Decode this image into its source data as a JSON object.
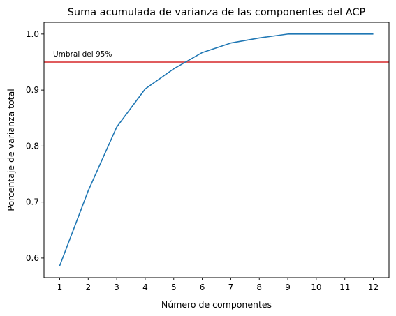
{
  "chart_data": {
    "type": "line",
    "title": "Suma acumulada de varianza de las componentes del ACP",
    "xlabel": "Número de componentes",
    "ylabel": "Porcentaje de varianza total",
    "x": [
      1,
      2,
      3,
      4,
      5,
      6,
      7,
      8,
      9,
      10,
      11,
      12
    ],
    "x_ticks": [
      "1",
      "2",
      "3",
      "4",
      "5",
      "6",
      "7",
      "8",
      "9",
      "10",
      "11",
      "12"
    ],
    "y_ticks": [
      "0.6",
      "0.7",
      "0.8",
      "0.9",
      "1.0"
    ],
    "y_tick_values": [
      0.6,
      0.7,
      0.8,
      0.9,
      1.0
    ],
    "xlim": [
      0.45,
      12.55
    ],
    "ylim": [
      0.565,
      1.021
    ],
    "grid": false,
    "series": [
      {
        "values": [
          0.586,
          0.72,
          0.834,
          0.902,
          0.938,
          0.967,
          0.984,
          0.993,
          1.0,
          1.0,
          1.0,
          1.0
        ],
        "color": "#1f77b4"
      }
    ],
    "threshold": {
      "y": 0.95,
      "label": "Umbral del 95%",
      "color": "#d62728"
    }
  }
}
